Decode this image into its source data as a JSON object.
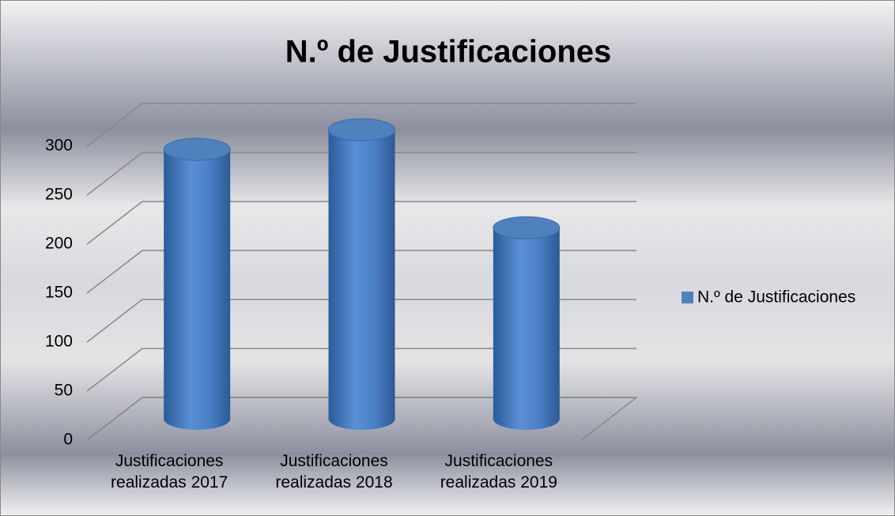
{
  "chart_data": {
    "type": "bar3d-cylinder",
    "title": "N.º de Justificaciones",
    "categories": [
      "Justificaciones realizadas 2017",
      "Justificaciones realizadas 2018",
      "Justificaciones realizadas 2019"
    ],
    "series": [
      {
        "name": "N.º de Justificaciones",
        "color": "#4f81bd",
        "values": [
          275,
          295,
          195
        ]
      }
    ],
    "ylim": [
      0,
      300
    ],
    "yticks": [
      0,
      50,
      100,
      150,
      200,
      250,
      300
    ],
    "grid": true,
    "legend": "right"
  }
}
